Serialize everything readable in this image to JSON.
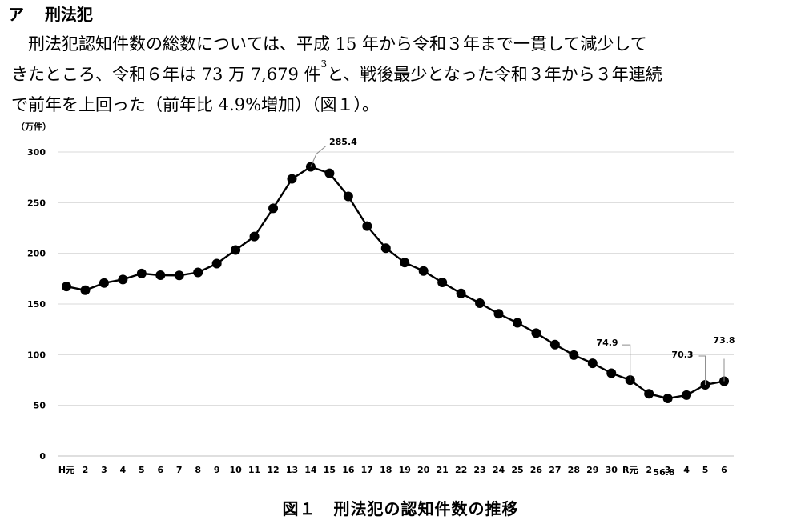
{
  "heading": {
    "marker": "ア",
    "title": "刑法犯"
  },
  "paragraph": {
    "line1": "刑法犯認知件数の総数については、平成 15 年から令和３年まで一貫して減少して",
    "line2_before": "きたところ、令和６年は 73 万 7,679 件",
    "line2_footnote": "3",
    "line2_after": "と、戦後最少となった令和３年から３年連続",
    "line3": "で前年を上回った（前年比 4.9%増加）（図１）。"
  },
  "caption": {
    "number": "図１",
    "title": "刑法犯の認知件数の推移"
  },
  "chart_data": {
    "type": "line",
    "title": "",
    "xlabel": "",
    "ylabel": "（万件）",
    "ylim": [
      0,
      300
    ],
    "yticks": [
      0,
      50,
      100,
      150,
      200,
      250,
      300
    ],
    "grid": true,
    "legend": "none",
    "categories": [
      "H元",
      "2",
      "3",
      "4",
      "5",
      "6",
      "7",
      "8",
      "9",
      "10",
      "11",
      "12",
      "13",
      "14",
      "15",
      "16",
      "17",
      "18",
      "19",
      "20",
      "21",
      "22",
      "23",
      "24",
      "25",
      "26",
      "27",
      "28",
      "29",
      "30",
      "R元",
      "2",
      "3",
      "4",
      "5",
      "6"
    ],
    "series": [
      {
        "values": [
          167.3,
          163.6,
          170.7,
          174.2,
          180.1,
          178.4,
          178.2,
          181.2,
          189.9,
          203.3,
          216.6,
          244.4,
          273.5,
          285.4,
          279.0,
          256.2,
          226.9,
          205.1,
          190.9,
          182.6,
          171.3,
          160.5,
          150.8,
          140.3,
          131.4,
          121.3,
          109.9,
          99.6,
          91.5,
          81.7,
          74.9,
          61.4,
          56.8,
          60.1,
          70.3,
          73.8
        ]
      }
    ],
    "annotations": [
      {
        "index": 13,
        "text": "285.4"
      },
      {
        "index": 30,
        "text": "74.9"
      },
      {
        "index": 32,
        "text": "56.8"
      },
      {
        "index": 34,
        "text": "70.3"
      },
      {
        "index": 35,
        "text": "73.8"
      }
    ]
  }
}
